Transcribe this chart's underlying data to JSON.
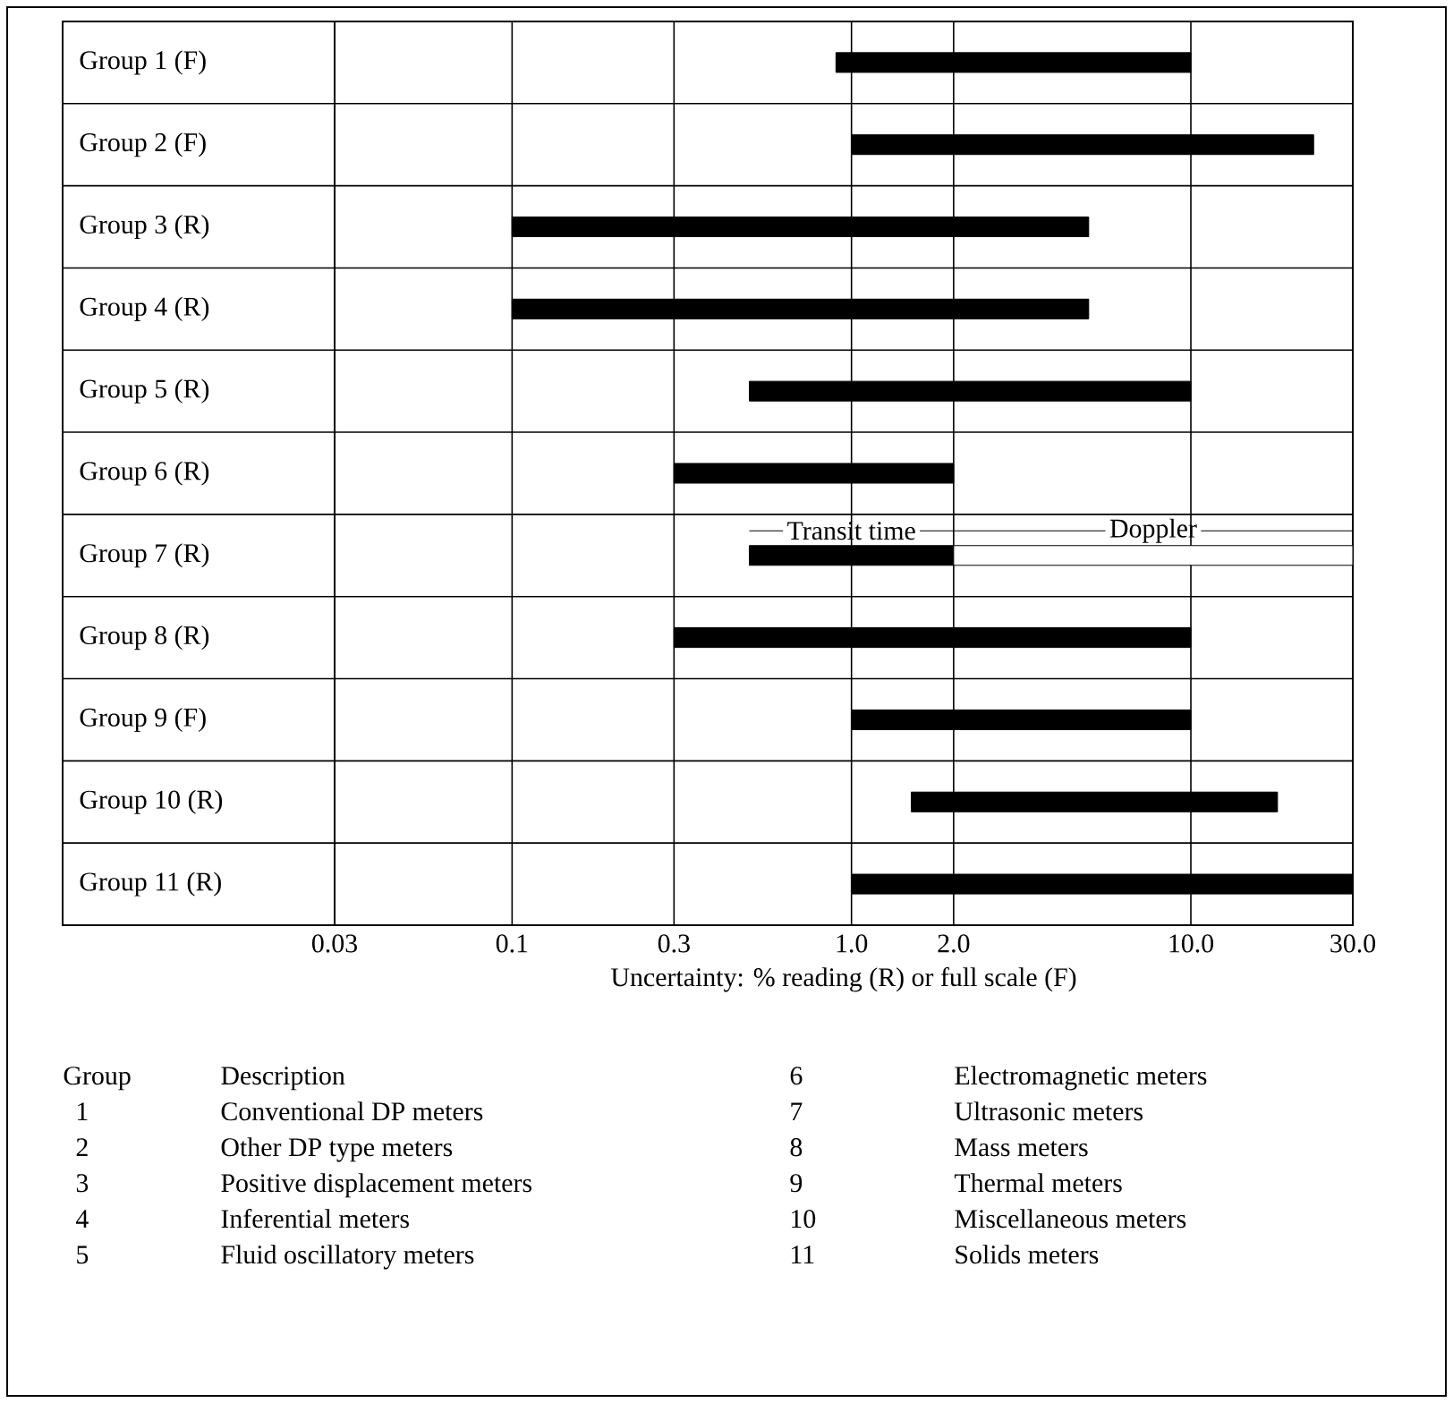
{
  "chart_data": {
    "type": "bar",
    "orientation": "horizontal",
    "xlabel": "Uncertainty: % reading (R) or full scale (F)",
    "categories": [
      "Group 1 (F)",
      "Group 2 (F)",
      "Group 3 (R)",
      "Group 4 (R)",
      "Group 5 (R)",
      "Group 6 (R)",
      "Group 7 (R)",
      "Group 8 (R)",
      "Group 9 (F)",
      "Group 10 (R)",
      "Group 11 (R)"
    ],
    "series": [
      {
        "color": "#000000",
        "base": [
          0.9,
          1,
          0.1,
          0.1,
          0.5,
          0.3,
          0.5,
          0.3,
          1,
          1.5,
          1
        ],
        "values": [
          9.1,
          22,
          4.9,
          4.9,
          9.5,
          1.7,
          1.5,
          9.7,
          9,
          16.5,
          29
        ]
      },
      {
        "color": "#ffffff",
        "base": [
          null,
          null,
          null,
          null,
          null,
          null,
          2,
          null,
          null,
          null,
          null
        ],
        "values": [
          null,
          null,
          null,
          null,
          null,
          null,
          28,
          null,
          null,
          null,
          null
        ]
      }
    ],
    "xlim": [
      0.03,
      30
    ],
    "xticks": [
      0.03,
      0.1,
      0.3,
      {
        "value": 1,
        "label": "1.0"
      },
      {
        "value": 2,
        "label": "2.0"
      },
      {
        "value": 10,
        "label": "10.0"
      },
      {
        "value": 30,
        "label": "30.0"
      }
    ],
    "log": "x",
    "grid": "x",
    "annotations": [
      "Transit time",
      "Doppler",
      "Group",
      "Description",
      "1",
      "Conventional DP meters",
      "2",
      "Other DP type meters",
      "3",
      "Positive displacement meters",
      "4",
      "Inferential meters",
      "5",
      "Fluid oscillatory meters",
      "6",
      "Electromagnetic meters",
      "7",
      "Ultrasonic meters",
      "8",
      "Mass meters",
      "9",
      "Thermal meters",
      "10",
      "Miscellaneous meters",
      "11",
      "Solids meters"
    ]
  }
}
